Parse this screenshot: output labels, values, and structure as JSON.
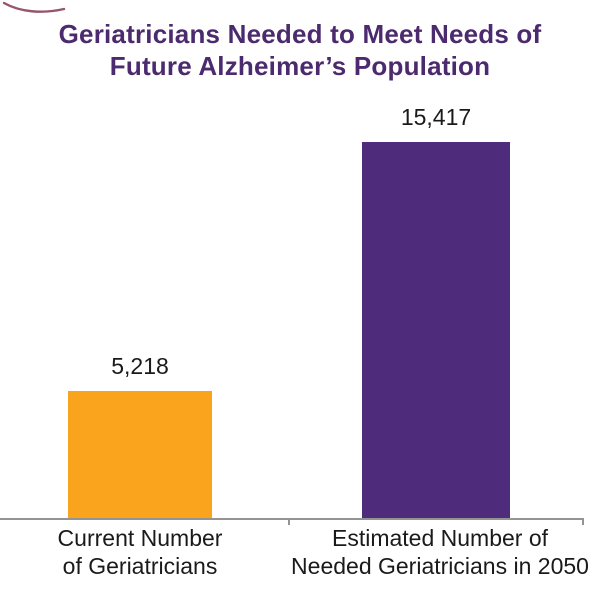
{
  "chart": {
    "title_line1": "Geriatricians Needed to Meet Needs of",
    "title_line2": "Future Alzheimer’s Population"
  },
  "chart_data": {
    "type": "bar",
    "title": "Geriatricians Needed to Meet Needs of Future Alzheimer’s Population",
    "categories": [
      "Current Number of Geriatricians",
      "Estimated Number of Needed Geriatricians in 2050"
    ],
    "category_lines": [
      [
        "Current Number",
        "of Geriatricians"
      ],
      [
        "Estimated Number of",
        "Needed Geriatricians in 2050"
      ]
    ],
    "values": [
      5218,
      15417
    ],
    "value_labels": [
      "5,218",
      "15,417"
    ],
    "value_labels_position": "above-bars",
    "bar_colors": [
      "#F9A41C",
      "#4F2B7B"
    ],
    "title_color": "#4C2A6E",
    "label_color": "#1A1A1A",
    "axis_color": "#949494",
    "swoosh_color": "#7B2B47",
    "xlabel": "",
    "ylabel": "",
    "ylim": [
      0,
      16000
    ],
    "grid": false,
    "legend": "none"
  }
}
